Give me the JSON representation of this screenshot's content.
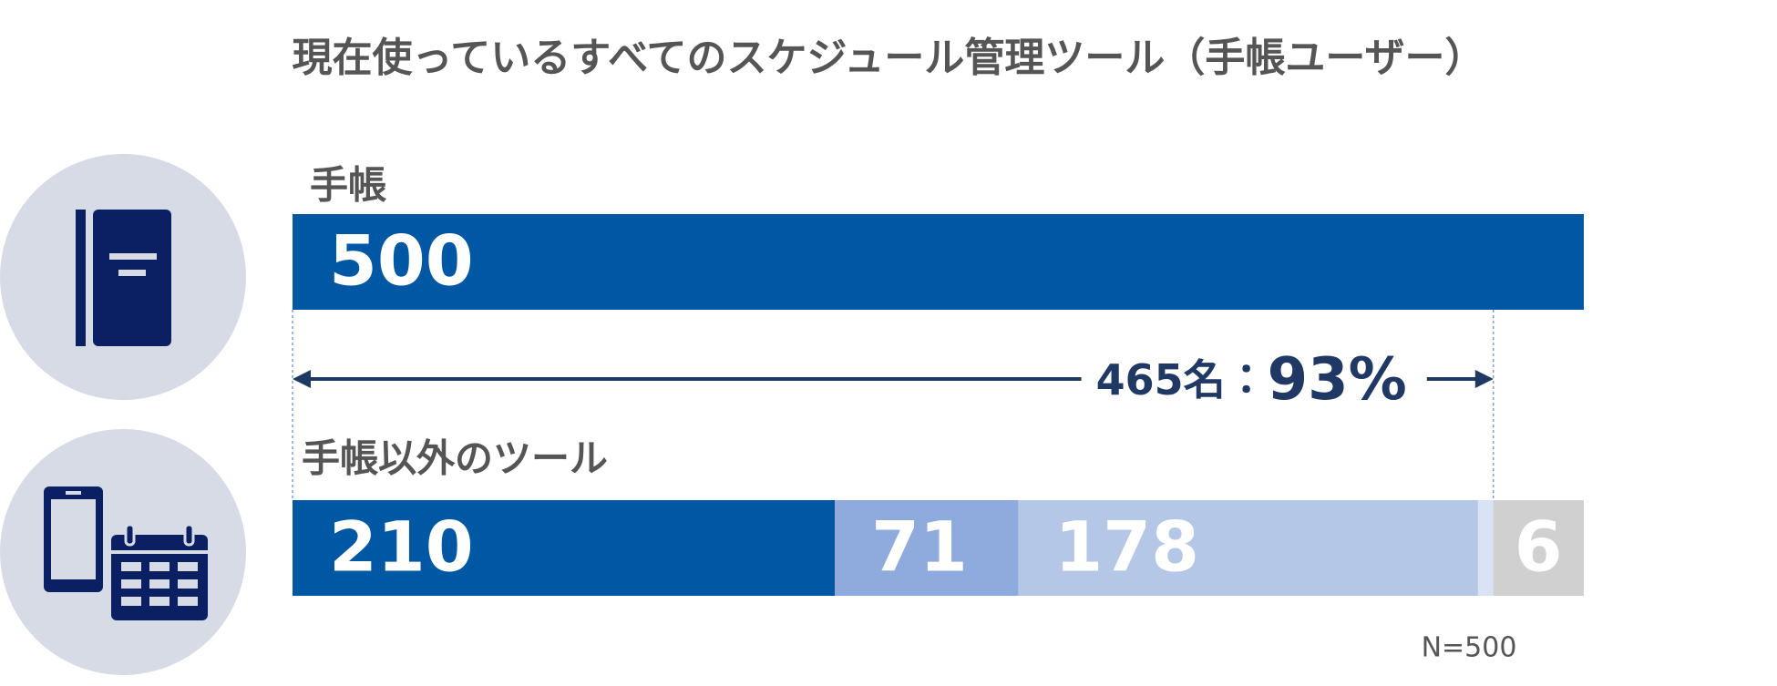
{
  "title": "現在使っているすべてのスケジュール管理ツール（手帳ユーザー）",
  "chart_data": {
    "type": "stacked_bar",
    "xlim": [
      0,
      500
    ],
    "bars": [
      {
        "label": "手帳",
        "values": [
          500
        ],
        "colors": [
          "#0057a3"
        ]
      },
      {
        "label": "手帳以外のツール",
        "values": [
          210,
          71,
          178,
          6
        ],
        "colors": [
          "#0057a3",
          "#8faadc",
          "#b4c7e7",
          "#dae3f3"
        ]
      }
    ],
    "track_color": "#d0d0d0",
    "annotation": "465名：",
    "annotation_emphasis": "93%",
    "note": "N=500"
  }
}
